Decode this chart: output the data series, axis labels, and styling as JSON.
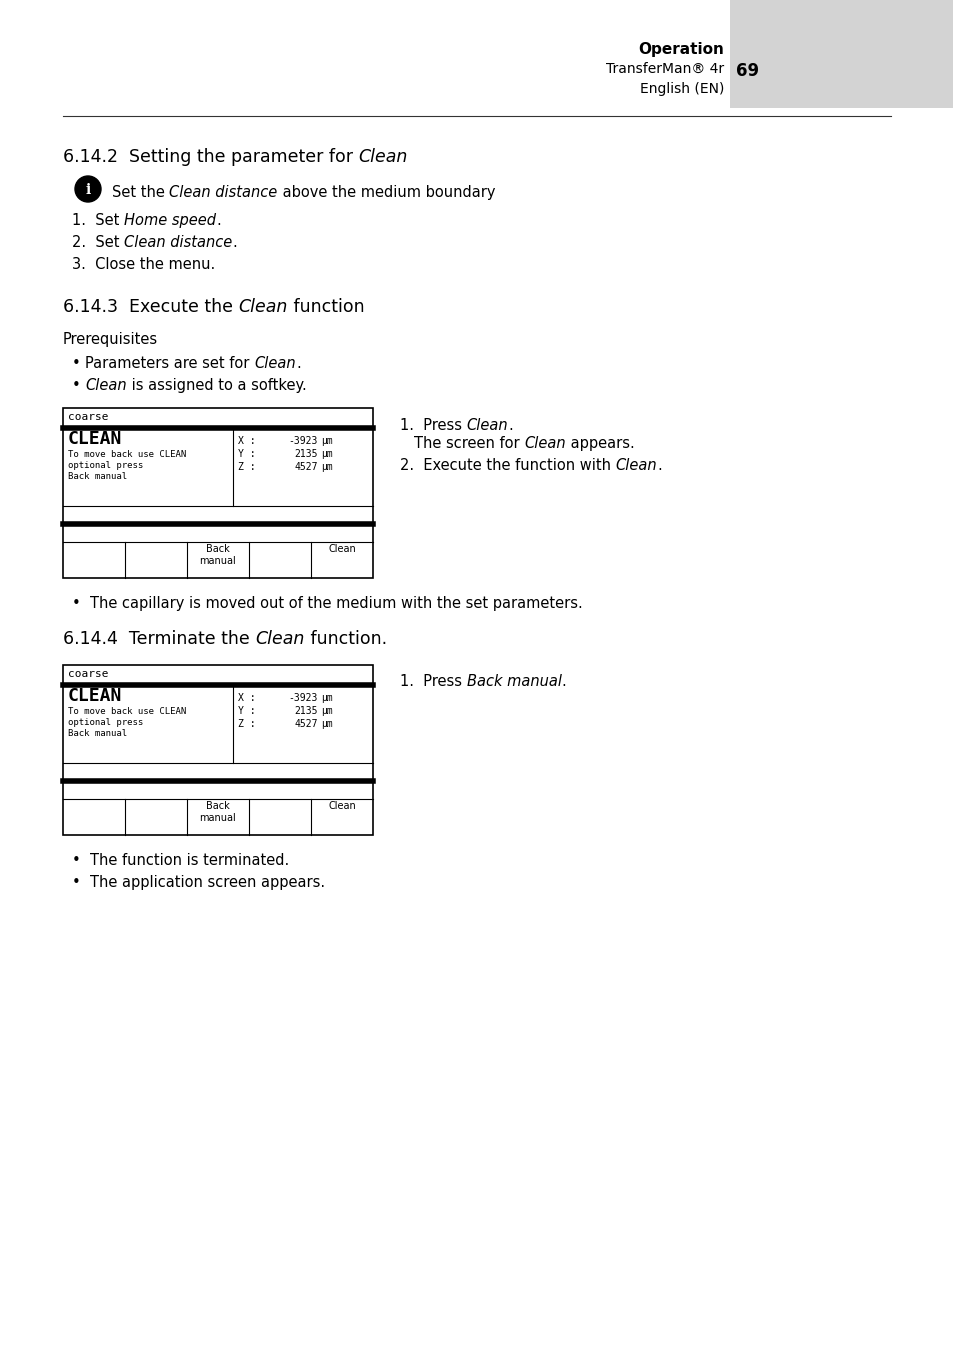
{
  "bg_color": "#ffffff",
  "gray_box_color": "#d3d3d3",
  "header_op": "Operation",
  "header_product": "TransferMan® 4r",
  "header_page": "69",
  "header_lang": "English (EN)",
  "screen_label": "coarse",
  "screen_title": "CLEAN",
  "screen_sub1": "To move back use CLEAN",
  "screen_sub2": "optional press",
  "screen_sub3": "Back manual",
  "screen_x_val": "-3923",
  "screen_y_val": "2135",
  "screen_z_val": "4527",
  "screen_unit": "μm"
}
